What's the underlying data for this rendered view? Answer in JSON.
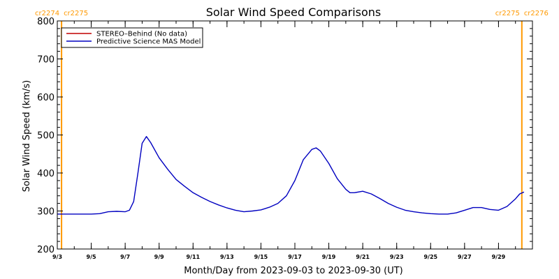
{
  "chart_data": {
    "type": "line",
    "title": "Solar Wind Speed Comparisons",
    "xlabel": "Month/Day from 2023-09-03 to 2023-09-30 (UT)",
    "ylabel": "Solar Wind Speed (km/s)",
    "xlim": [
      "2023-09-03",
      "2023-09-30"
    ],
    "ylim": [
      200,
      800
    ],
    "y_ticks": [
      200,
      300,
      400,
      500,
      600,
      700,
      800
    ],
    "x_ticks": [
      {
        "date": "2023-09-03",
        "label": "9/3"
      },
      {
        "date": "2023-09-05",
        "label": "9/5"
      },
      {
        "date": "2023-09-07",
        "label": "9/7"
      },
      {
        "date": "2023-09-09",
        "label": "9/9"
      },
      {
        "date": "2023-09-11",
        "label": "9/11"
      },
      {
        "date": "2023-09-13",
        "label": "9/13"
      },
      {
        "date": "2023-09-15",
        "label": "9/15"
      },
      {
        "date": "2023-09-17",
        "label": "9/17"
      },
      {
        "date": "2023-09-19",
        "label": "9/19"
      },
      {
        "date": "2023-09-21",
        "label": "9/21"
      },
      {
        "date": "2023-09-23",
        "label": "9/23"
      },
      {
        "date": "2023-09-25",
        "label": "9/25"
      },
      {
        "date": "2023-09-27",
        "label": "9/27"
      },
      {
        "date": "2023-09-29",
        "label": "9/29"
      }
    ],
    "grid": false,
    "legend_position": "top-left",
    "carrington_markers": [
      {
        "date": "2023-09-03 06:00",
        "left_label": "cr2274",
        "right_label": "cr2275",
        "color": "#ff9900"
      },
      {
        "date": "2023-09-30 09:00",
        "left_label": "cr2275",
        "right_label": "cr2276",
        "color": "#ff9900"
      }
    ],
    "series": [
      {
        "name": "STEREO–Behind (No data)",
        "color": "#c00000",
        "points": []
      },
      {
        "name": "Predictive Science MAS Model",
        "color": "#0000c0",
        "points": [
          [
            "2023-09-03 00:00",
            292
          ],
          [
            "2023-09-03 12:00",
            292
          ],
          [
            "2023-09-04 00:00",
            292
          ],
          [
            "2023-09-04 12:00",
            292
          ],
          [
            "2023-09-05 00:00",
            292
          ],
          [
            "2023-09-05 12:00",
            293
          ],
          [
            "2023-09-06 00:00",
            298
          ],
          [
            "2023-09-06 12:00",
            299
          ],
          [
            "2023-09-07 00:00",
            298
          ],
          [
            "2023-09-07 06:00",
            302
          ],
          [
            "2023-09-07 12:00",
            325
          ],
          [
            "2023-09-07 18:00",
            400
          ],
          [
            "2023-09-08 00:00",
            478
          ],
          [
            "2023-09-08 06:00",
            496
          ],
          [
            "2023-09-08 12:00",
            480
          ],
          [
            "2023-09-09 00:00",
            440
          ],
          [
            "2023-09-09 12:00",
            410
          ],
          [
            "2023-09-10 00:00",
            383
          ],
          [
            "2023-09-10 12:00",
            365
          ],
          [
            "2023-09-11 00:00",
            348
          ],
          [
            "2023-09-11 12:00",
            336
          ],
          [
            "2023-09-12 00:00",
            325
          ],
          [
            "2023-09-12 12:00",
            316
          ],
          [
            "2023-09-13 00:00",
            308
          ],
          [
            "2023-09-13 12:00",
            302
          ],
          [
            "2023-09-14 00:00",
            298
          ],
          [
            "2023-09-14 12:00",
            300
          ],
          [
            "2023-09-15 00:00",
            303
          ],
          [
            "2023-09-15 12:00",
            310
          ],
          [
            "2023-09-16 00:00",
            320
          ],
          [
            "2023-09-16 12:00",
            340
          ],
          [
            "2023-09-17 00:00",
            380
          ],
          [
            "2023-09-17 12:00",
            435
          ],
          [
            "2023-09-18 00:00",
            462
          ],
          [
            "2023-09-18 06:00",
            466
          ],
          [
            "2023-09-18 12:00",
            458
          ],
          [
            "2023-09-19 00:00",
            425
          ],
          [
            "2023-09-19 12:00",
            385
          ],
          [
            "2023-09-20 00:00",
            357
          ],
          [
            "2023-09-20 06:00",
            348
          ],
          [
            "2023-09-20 12:00",
            348
          ],
          [
            "2023-09-21 00:00",
            352
          ],
          [
            "2023-09-21 12:00",
            345
          ],
          [
            "2023-09-22 00:00",
            333
          ],
          [
            "2023-09-22 12:00",
            320
          ],
          [
            "2023-09-23 00:00",
            310
          ],
          [
            "2023-09-23 12:00",
            302
          ],
          [
            "2023-09-24 00:00",
            298
          ],
          [
            "2023-09-24 12:00",
            295
          ],
          [
            "2023-09-25 00:00",
            293
          ],
          [
            "2023-09-25 12:00",
            292
          ],
          [
            "2023-09-26 00:00",
            292
          ],
          [
            "2023-09-26 12:00",
            295
          ],
          [
            "2023-09-27 00:00",
            302
          ],
          [
            "2023-09-27 12:00",
            309
          ],
          [
            "2023-09-28 00:00",
            309
          ],
          [
            "2023-09-28 12:00",
            304
          ],
          [
            "2023-09-29 00:00",
            302
          ],
          [
            "2023-09-29 12:00",
            312
          ],
          [
            "2023-09-30 00:00",
            332
          ],
          [
            "2023-09-30 06:00",
            345
          ],
          [
            "2023-09-30 12:00",
            350
          ]
        ]
      }
    ]
  }
}
